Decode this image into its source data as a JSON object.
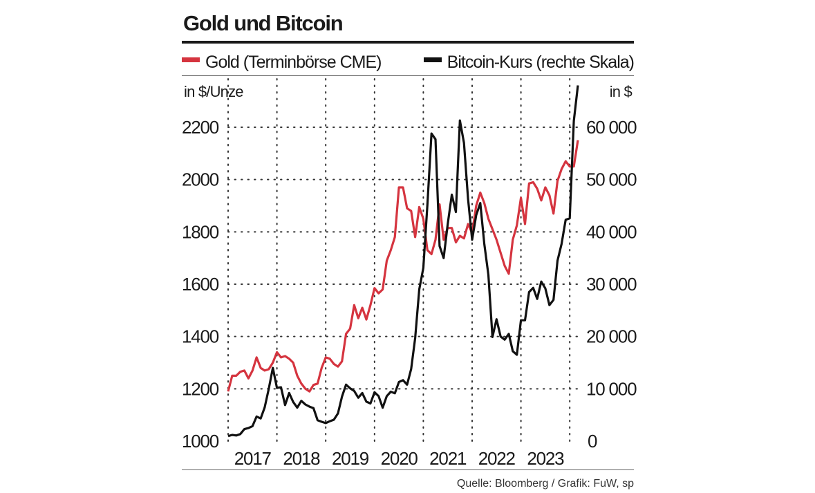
{
  "chart_data": {
    "type": "line",
    "title": "Gold und Bitcoin",
    "source": "Quelle: Bloomberg / Grafik: FuW, sp",
    "left_axis": {
      "unit": "in $/Unze",
      "ticks": [
        "1000",
        "1200",
        "1400",
        "1600",
        "1800",
        "2000",
        "2200"
      ],
      "tick_values": [
        1000,
        1200,
        1400,
        1600,
        1800,
        2000,
        2200
      ],
      "range": [
        1000,
        2200
      ]
    },
    "right_axis": {
      "unit": "in $",
      "ticks": [
        "0",
        "10 000",
        "20 000",
        "30 000",
        "40 000",
        "50 000",
        "60 000"
      ],
      "tick_values": [
        0,
        10000,
        20000,
        30000,
        40000,
        50000,
        60000
      ],
      "range": [
        0,
        60000
      ]
    },
    "x_axis": {
      "ticks": [
        "2017",
        "2018",
        "2019",
        "2020",
        "2021",
        "2022",
        "2023"
      ],
      "range": [
        "2017-01",
        "2024-03"
      ]
    },
    "grid": true,
    "legend_placement": "top",
    "x": [
      "2017-01",
      "2017-02",
      "2017-03",
      "2017-04",
      "2017-05",
      "2017-06",
      "2017-07",
      "2017-08",
      "2017-09",
      "2017-10",
      "2017-11",
      "2017-12",
      "2018-01",
      "2018-02",
      "2018-03",
      "2018-04",
      "2018-05",
      "2018-06",
      "2018-07",
      "2018-08",
      "2018-09",
      "2018-10",
      "2018-11",
      "2018-12",
      "2019-01",
      "2019-02",
      "2019-03",
      "2019-04",
      "2019-05",
      "2019-06",
      "2019-07",
      "2019-08",
      "2019-09",
      "2019-10",
      "2019-11",
      "2019-12",
      "2020-01",
      "2020-02",
      "2020-03",
      "2020-04",
      "2020-05",
      "2020-06",
      "2020-07",
      "2020-08",
      "2020-09",
      "2020-10",
      "2020-11",
      "2020-12",
      "2021-01",
      "2021-02",
      "2021-03",
      "2021-04",
      "2021-05",
      "2021-06",
      "2021-07",
      "2021-08",
      "2021-09",
      "2021-10",
      "2021-11",
      "2021-12",
      "2022-01",
      "2022-02",
      "2022-03",
      "2022-04",
      "2022-05",
      "2022-06",
      "2022-07",
      "2022-08",
      "2022-09",
      "2022-10",
      "2022-11",
      "2022-12",
      "2023-01",
      "2023-02",
      "2023-03",
      "2023-04",
      "2023-05",
      "2023-06",
      "2023-07",
      "2023-08",
      "2023-09",
      "2023-10",
      "2023-11",
      "2023-12",
      "2024-01",
      "2024-02",
      "2024-03"
    ],
    "series": [
      {
        "name": "Gold (Terminbörse CME)",
        "axis": "left",
        "color": "#d5343f",
        "values": [
          1190,
          1250,
          1250,
          1265,
          1270,
          1240,
          1270,
          1320,
          1280,
          1270,
          1275,
          1300,
          1340,
          1320,
          1325,
          1315,
          1300,
          1250,
          1220,
          1200,
          1190,
          1215,
          1220,
          1280,
          1320,
          1315,
          1295,
          1285,
          1305,
          1410,
          1430,
          1520,
          1470,
          1510,
          1465,
          1520,
          1585,
          1565,
          1580,
          1690,
          1730,
          1780,
          1970,
          1970,
          1890,
          1880,
          1780,
          1895,
          1850,
          1730,
          1715,
          1770,
          1905,
          1770,
          1815,
          1815,
          1760,
          1785,
          1775,
          1830,
          1795,
          1900,
          1950,
          1910,
          1850,
          1810,
          1770,
          1720,
          1670,
          1640,
          1770,
          1825,
          1930,
          1830,
          1985,
          1990,
          1965,
          1920,
          1970,
          1940,
          1870,
          1995,
          2040,
          2070,
          2050,
          2050,
          2150
        ]
      },
      {
        "name": "Bitcoin-Kurs (rechte Skala)",
        "axis": "right",
        "color": "#111111",
        "values": [
          970,
          1190,
          1080,
          1350,
          2300,
          2500,
          2870,
          4700,
          4340,
          6450,
          10000,
          14000,
          10200,
          10300,
          6900,
          9200,
          7500,
          6400,
          7700,
          7000,
          6600,
          6300,
          4000,
          3700,
          3450,
          3800,
          4100,
          5300,
          8500,
          10800,
          10100,
          9600,
          8300,
          9200,
          7550,
          7200,
          9350,
          8600,
          6400,
          8600,
          9450,
          9150,
          11300,
          11650,
          10800,
          13800,
          19700,
          29000,
          33100,
          45200,
          58800,
          57700,
          37300,
          35000,
          41500,
          47100,
          43800,
          61300,
          57000,
          46300,
          38500,
          43200,
          45500,
          37700,
          31800,
          19900,
          23300,
          20000,
          19400,
          20500,
          17200,
          16500,
          23100,
          23100,
          28500,
          29300,
          27200,
          30500,
          29200,
          26000,
          27000,
          34500,
          37700,
          42300,
          42600,
          61200,
          68000
        ]
      }
    ]
  }
}
